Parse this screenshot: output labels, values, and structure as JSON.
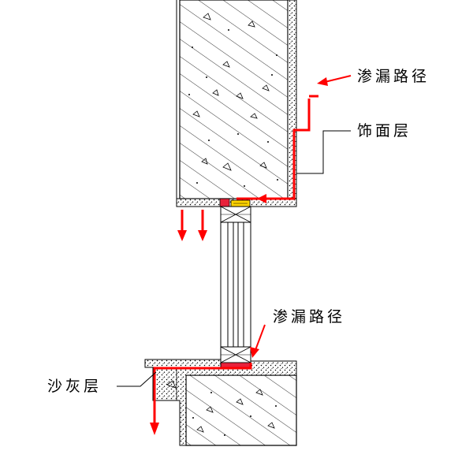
{
  "labels": {
    "seepage_path_top": "渗漏路径",
    "finish_layer": "饰面层",
    "seepage_path_bottom": "渗漏路径",
    "plaster_layer": "沙灰层"
  },
  "colors": {
    "leak_path": "#ff0000",
    "sealant": "#e8213a",
    "filler": "#ffd400",
    "line": "#000000",
    "background": "#ffffff"
  }
}
